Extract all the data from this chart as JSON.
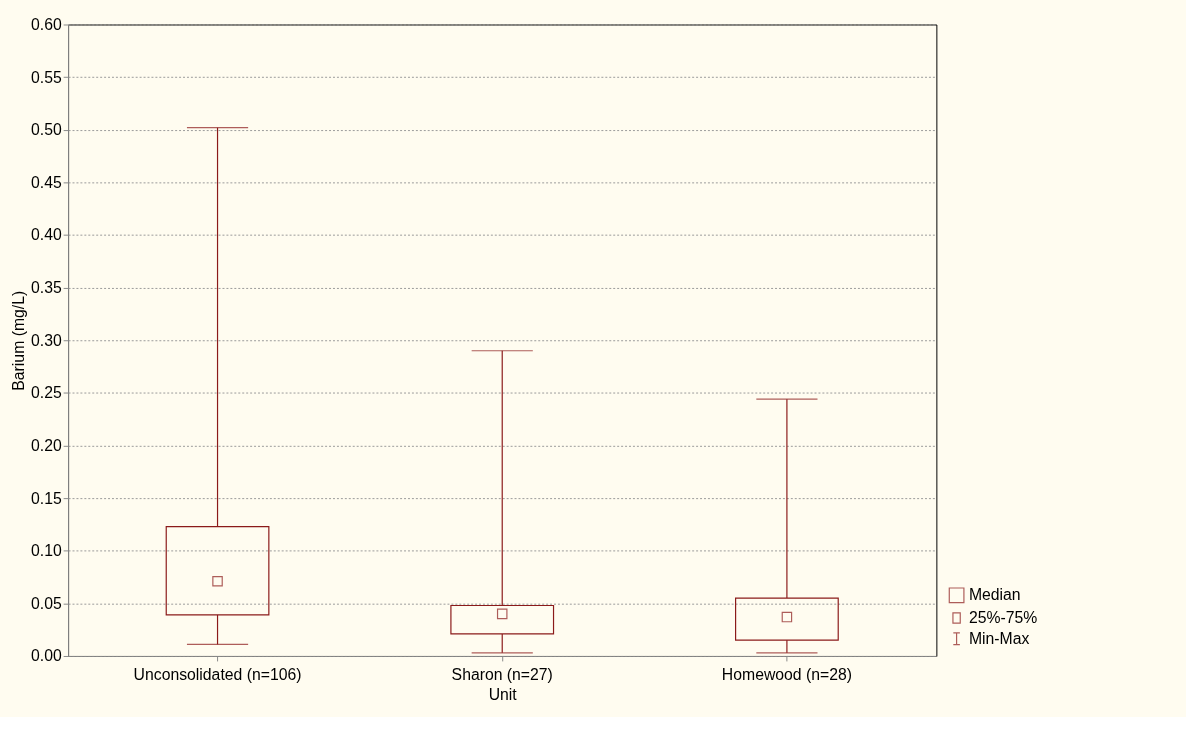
{
  "chart_data": {
    "type": "box",
    "xlabel": "Unit",
    "ylabel": "Barium (mg/L)",
    "categories": [
      "Unconsolidated (n=106)",
      "Sharon (n=27)",
      "Homewood (n=28)"
    ],
    "boxes": [
      {
        "low": 0.011,
        "q1": 0.039,
        "median": 0.071,
        "q3": 0.123,
        "high": 0.502
      },
      {
        "low": 0.003,
        "q1": 0.021,
        "median": 0.04,
        "q3": 0.048,
        "high": 0.29
      },
      {
        "low": 0.003,
        "q1": 0.015,
        "median": 0.037,
        "q3": 0.055,
        "high": 0.244
      }
    ],
    "color": "#8b1a1a",
    "ylim": [
      0,
      0.6
    ],
    "yticks": [
      {
        "value": 0,
        "label": "0.00"
      },
      0.05,
      {
        "value": 0.1,
        "label": "0.10"
      },
      0.15,
      {
        "value": 0.2,
        "label": "0.20"
      },
      0.25,
      {
        "value": 0.3,
        "label": "0.30"
      },
      0.35,
      {
        "value": 0.4,
        "label": "0.40"
      },
      0.45,
      {
        "value": 0.5,
        "label": "0.50"
      },
      0.55,
      {
        "value": 0.6,
        "label": "0.60"
      }
    ],
    "grid": "y",
    "marker": "square",
    "annotations": [
      "Median",
      "25%-75%",
      "Min-Max"
    ]
  }
}
